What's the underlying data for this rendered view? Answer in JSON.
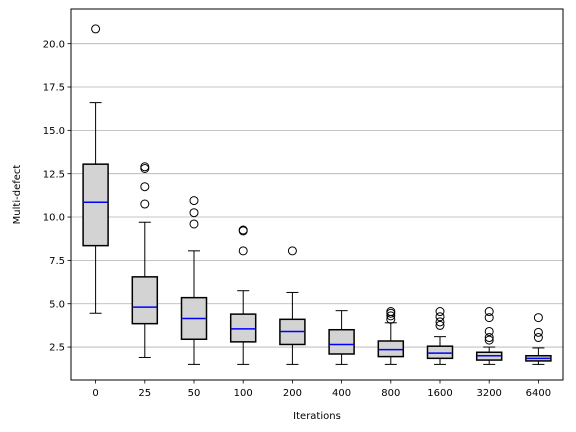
{
  "chart_data": {
    "type": "box",
    "title": "",
    "xlabel": "Iterations",
    "ylabel": "Multi-defect",
    "ylim": [
      0.6,
      22.0
    ],
    "yticks": [
      2.5,
      5.0,
      7.5,
      10.0,
      12.5,
      15.0,
      17.5,
      20.0
    ],
    "ytick_labels": [
      "2.5",
      "5.0",
      "7.5",
      "10.0",
      "12.5",
      "15.0",
      "17.5",
      "20.0"
    ],
    "grid": "y",
    "box_fill": "#d3d3d3",
    "median_color": "#0000ff",
    "grid_color": "#b0b0b0",
    "categories": [
      "0",
      "25",
      "50",
      "100",
      "200",
      "400",
      "800",
      "1600",
      "3200",
      "6400"
    ],
    "boxes": [
      {
        "whislo": 4.45,
        "q1": 8.35,
        "med": 10.85,
        "q3": 13.05,
        "whishi": 16.6,
        "fliers": [
          20.85
        ]
      },
      {
        "whislo": 1.9,
        "q1": 3.85,
        "med": 4.8,
        "q3": 6.55,
        "whishi": 9.7,
        "fliers": [
          10.75,
          11.75,
          12.8,
          12.9
        ]
      },
      {
        "whislo": 1.5,
        "q1": 2.95,
        "med": 4.15,
        "q3": 5.35,
        "whishi": 8.05,
        "fliers": [
          9.6,
          10.25,
          10.95
        ]
      },
      {
        "whislo": 1.5,
        "q1": 2.8,
        "med": 3.55,
        "q3": 4.4,
        "whishi": 5.75,
        "fliers": [
          8.05,
          9.2,
          9.25
        ]
      },
      {
        "whislo": 1.5,
        "q1": 2.65,
        "med": 3.4,
        "q3": 4.1,
        "whishi": 5.65,
        "fliers": [
          8.05
        ]
      },
      {
        "whislo": 1.5,
        "q1": 2.1,
        "med": 2.65,
        "q3": 3.5,
        "whishi": 4.6,
        "fliers": []
      },
      {
        "whislo": 1.5,
        "q1": 1.95,
        "med": 2.35,
        "q3": 2.85,
        "whishi": 3.9,
        "fliers": [
          4.1,
          4.3,
          4.45,
          4.55
        ]
      },
      {
        "whislo": 1.5,
        "q1": 1.85,
        "med": 2.15,
        "q3": 2.55,
        "whishi": 3.1,
        "fliers": [
          3.75,
          3.95,
          4.25,
          4.55
        ]
      },
      {
        "whislo": 1.5,
        "q1": 1.75,
        "med": 2.0,
        "q3": 2.2,
        "whishi": 2.5,
        "fliers": [
          2.9,
          3.05,
          3.4,
          4.2,
          4.55
        ]
      },
      {
        "whislo": 1.5,
        "q1": 1.7,
        "med": 1.85,
        "q3": 2.0,
        "whishi": 2.45,
        "fliers": [
          3.05,
          3.35,
          4.2
        ]
      }
    ]
  }
}
